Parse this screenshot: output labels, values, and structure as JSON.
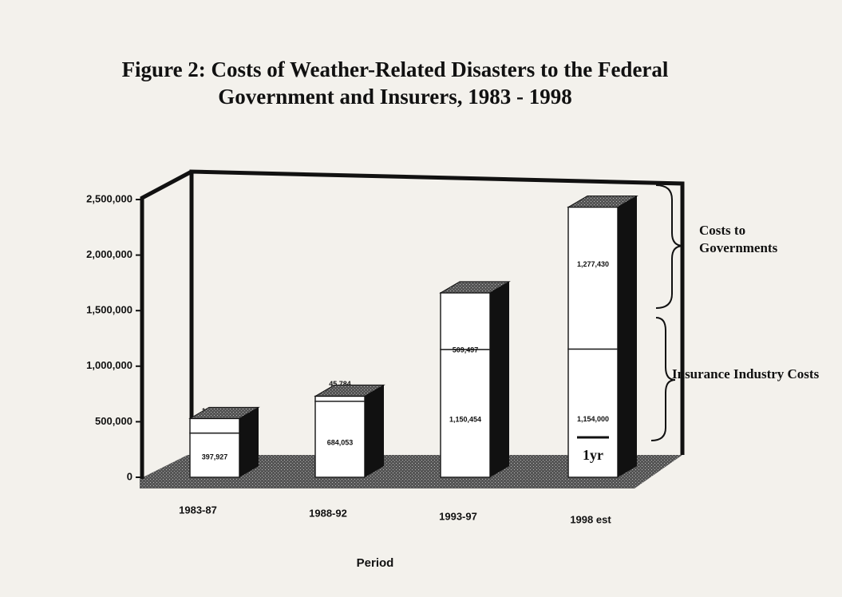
{
  "chart_data": {
    "type": "stacked_bar_3d",
    "title": "Figure 2: Costs of Weather-Related Disasters to the Federal Government and Insurers, 1983 - 1998",
    "x_label": "Period",
    "categories": [
      "1983-87",
      "1988-92",
      "1993-97",
      "1998 est"
    ],
    "series": [
      {
        "name": "Insurance Industry Costs",
        "color": "#ffffff",
        "values": [
          397927,
          684053,
          1150454,
          1154000
        ],
        "value_labels": [
          "397,927",
          "684,053",
          "1,150,454",
          "1,154,000"
        ]
      },
      {
        "name": "Costs to Governments",
        "color": "#ffffff",
        "values": [
          131028,
          45784,
          509497,
          1277430
        ],
        "value_labels": [
          "131,028",
          "45,784",
          "509,497",
          "1,277,430"
        ]
      }
    ],
    "annotations": [
      "1yr"
    ],
    "ylim": [
      0,
      2500000
    ],
    "yticks": [
      0,
      {
        "value": 500000,
        "label": "500,000"
      },
      {
        "value": 1000000,
        "label": "1,000,000"
      },
      {
        "value": 1500000,
        "label": "1,500,000"
      },
      {
        "value": 2000000,
        "label": "2,000,000"
      },
      {
        "value": 2500000,
        "label": "2,500,000"
      }
    ]
  }
}
